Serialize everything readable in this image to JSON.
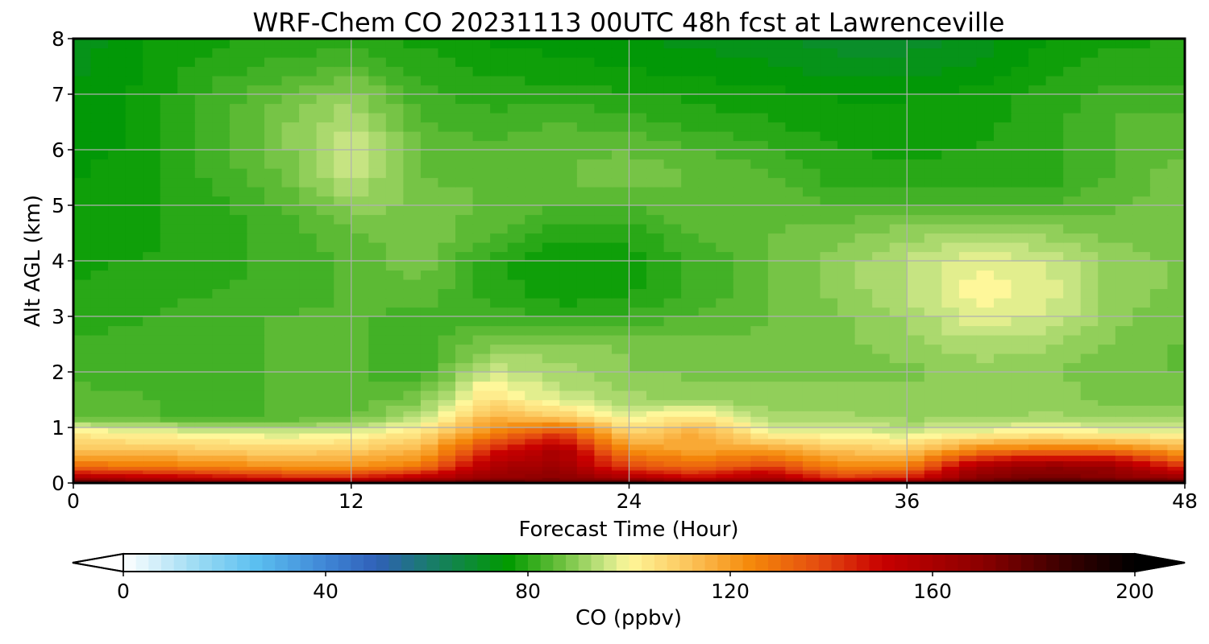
{
  "chart_data": {
    "type": "heatmap",
    "title": "WRF-Chem CO  20231113 00UTC 48h fcst at Lawrenceville",
    "xlabel": "Forecast Time (Hour)",
    "ylabel": "Alt AGL (km)",
    "xlim": [
      0,
      48
    ],
    "ylim": [
      0,
      8
    ],
    "x_ticks": [
      "0",
      "12",
      "24",
      "36",
      "48"
    ],
    "y_ticks": [
      "0",
      "1",
      "2",
      "3",
      "4",
      "5",
      "6",
      "7",
      "8"
    ],
    "grid": true,
    "colorbar": {
      "label": "CO  (ppbv)",
      "range": [
        0,
        200
      ],
      "ticks": [
        "0",
        "40",
        "80",
        "120",
        "160",
        "200"
      ],
      "extend": "both",
      "colors": [
        {
          "v": 0,
          "c": "#ffffff"
        },
        {
          "v": 14,
          "c": "#9fdcf4"
        },
        {
          "v": 26,
          "c": "#5cc0f0"
        },
        {
          "v": 40,
          "c": "#3f86d6"
        },
        {
          "v": 50,
          "c": "#3060b8"
        },
        {
          "v": 60,
          "c": "#1a7a70"
        },
        {
          "v": 76,
          "c": "#009a00"
        },
        {
          "v": 86,
          "c": "#66be3a"
        },
        {
          "v": 95,
          "c": "#c6e482"
        },
        {
          "v": 100,
          "c": "#fef79a"
        },
        {
          "v": 112,
          "c": "#fcc45a"
        },
        {
          "v": 124,
          "c": "#f5890a"
        },
        {
          "v": 138,
          "c": "#e44a10"
        },
        {
          "v": 150,
          "c": "#c80000"
        },
        {
          "v": 170,
          "c": "#8a0000"
        },
        {
          "v": 186,
          "c": "#3a0000"
        },
        {
          "v": 200,
          "c": "#000000"
        }
      ]
    },
    "cells": {
      "x": [
        0,
        3,
        6,
        9,
        12,
        15,
        18,
        21,
        24,
        27,
        30,
        33,
        36,
        39,
        42,
        45,
        48
      ],
      "y": [
        0,
        0.1,
        0.3,
        0.6,
        0.9,
        1.2,
        1.5,
        2.0,
        2.5,
        3.0,
        3.5,
        4.0,
        4.5,
        5.0,
        5.5,
        6.0,
        6.5,
        7.0,
        7.5,
        8.0
      ],
      "z": [
        [
          192,
          186,
          186,
          184,
          184,
          186,
          190,
          180,
          190,
          185,
          182,
          178,
          186,
          186,
          192,
          195,
          195
        ],
        [
          160,
          155,
          150,
          145,
          145,
          155,
          165,
          170,
          160,
          150,
          160,
          140,
          145,
          170,
          175,
          170,
          165
        ],
        [
          130,
          128,
          125,
          122,
          122,
          128,
          158,
          165,
          138,
          130,
          140,
          125,
          125,
          160,
          168,
          165,
          140
        ],
        [
          112,
          112,
          110,
          108,
          110,
          115,
          145,
          160,
          122,
          118,
          120,
          112,
          110,
          125,
          130,
          128,
          118
        ],
        [
          103,
          100,
          98,
          96,
          98,
          105,
          125,
          140,
          108,
          118,
          100,
          98,
          96,
          100,
          102,
          100,
          100
        ],
        [
          86,
          84,
          82,
          84,
          86,
          94,
          115,
          110,
          98,
          104,
          92,
          92,
          90,
          90,
          92,
          90,
          90
        ],
        [
          85,
          84,
          83,
          84,
          85,
          88,
          106,
          96,
          92,
          90,
          90,
          90,
          90,
          89,
          90,
          88,
          88
        ],
        [
          83,
          82,
          83,
          84,
          84,
          82,
          96,
          92,
          89,
          88,
          88,
          88,
          88,
          90,
          89,
          87,
          86
        ],
        [
          82,
          82,
          83,
          84,
          84,
          82,
          88,
          90,
          88,
          87,
          87,
          88,
          90,
          93,
          92,
          88,
          86
        ],
        [
          80,
          81,
          83,
          84,
          84,
          83,
          83,
          80,
          82,
          84,
          86,
          88,
          92,
          98,
          96,
          90,
          86
        ],
        [
          79,
          80,
          81,
          82,
          84,
          86,
          80,
          77,
          78,
          82,
          86,
          90,
          94,
          100,
          98,
          90,
          88
        ],
        [
          78,
          79,
          80,
          82,
          84,
          88,
          80,
          76,
          77,
          82,
          86,
          90,
          94,
          98,
          96,
          90,
          88
        ],
        [
          77,
          78,
          80,
          82,
          86,
          88,
          84,
          80,
          80,
          84,
          86,
          88,
          90,
          92,
          90,
          88,
          88
        ],
        [
          76,
          78,
          80,
          84,
          90,
          88,
          86,
          84,
          84,
          86,
          86,
          84,
          84,
          84,
          84,
          86,
          88
        ],
        [
          76,
          78,
          82,
          86,
          95,
          86,
          86,
          86,
          88,
          86,
          84,
          80,
          80,
          80,
          80,
          84,
          88
        ],
        [
          75,
          77,
          82,
          88,
          96,
          86,
          84,
          86,
          86,
          84,
          82,
          79,
          78,
          79,
          80,
          84,
          86
        ],
        [
          74,
          77,
          82,
          88,
          94,
          84,
          82,
          84,
          82,
          80,
          79,
          77,
          77,
          78,
          80,
          84,
          85
        ],
        [
          74,
          77,
          82,
          86,
          90,
          82,
          80,
          80,
          79,
          78,
          77,
          76,
          76,
          77,
          80,
          82,
          82
        ],
        [
          73,
          76,
          80,
          82,
          84,
          80,
          78,
          77,
          76,
          75,
          74,
          72,
          72,
          74,
          78,
          80,
          80
        ],
        [
          72,
          76,
          78,
          79,
          80,
          78,
          76,
          75,
          74,
          73,
          72,
          70,
          70,
          72,
          76,
          78,
          79
        ]
      ]
    }
  }
}
